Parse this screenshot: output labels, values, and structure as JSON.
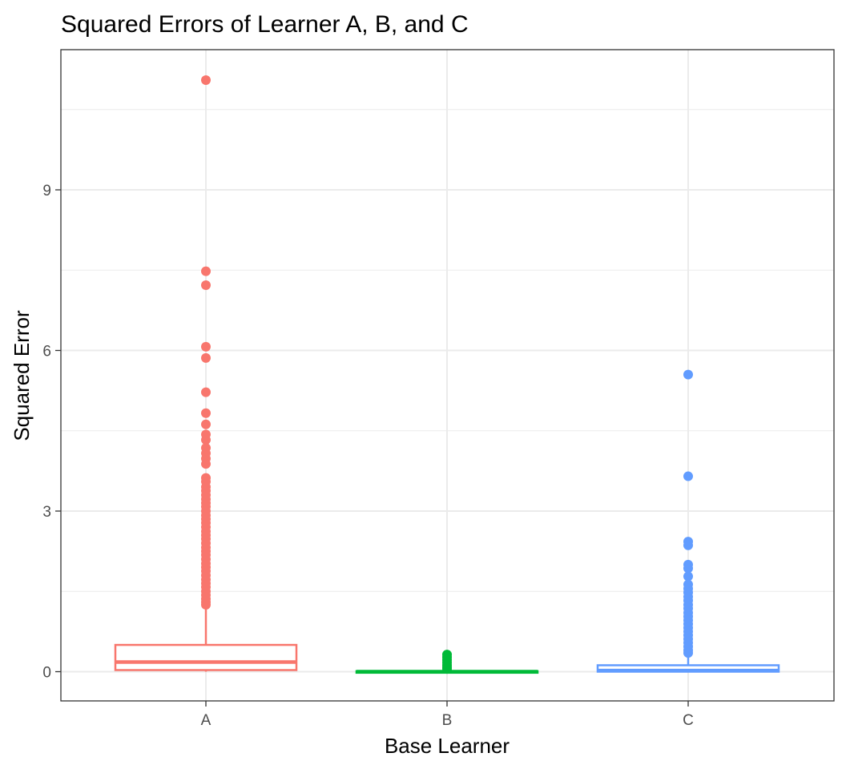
{
  "chart_data": {
    "type": "boxplot",
    "title": "Squared Errors of Learner A, B, and C",
    "xlabel": "Base Learner",
    "ylabel": "Squared Error",
    "categories": [
      "A",
      "B",
      "C"
    ],
    "ylim": [
      -0.55,
      11.6
    ],
    "yticks": [
      0,
      3,
      6,
      9
    ],
    "grid": true,
    "legend": "none",
    "series": [
      {
        "category": "A",
        "color": "#F8766D",
        "box": {
          "min": 0.0,
          "q1": 0.03,
          "median": 0.18,
          "q3": 0.5,
          "whisker_high": 1.2
        },
        "outliers": [
          11.05,
          7.48,
          7.22,
          6.07,
          5.86,
          5.22,
          4.83,
          4.62,
          4.43,
          4.33,
          4.18,
          4.08,
          3.98,
          3.88,
          3.62,
          3.55,
          3.45,
          3.38,
          3.3,
          3.22,
          3.15,
          3.08,
          3.0,
          2.92,
          2.85,
          2.78,
          2.7,
          2.62,
          2.55,
          2.48,
          2.4,
          2.32,
          2.25,
          2.18,
          2.1,
          2.02,
          1.95,
          1.88,
          1.8,
          1.72,
          1.65,
          1.58,
          1.5,
          1.43,
          1.36,
          1.3,
          1.25
        ]
      },
      {
        "category": "B",
        "color": "#00BA38",
        "box": {
          "min": 0.0,
          "q1": 0.0,
          "median": 0.0,
          "q3": 0.01,
          "whisker_high": 0.02
        },
        "outliers": [
          0.32,
          0.27,
          0.22,
          0.17,
          0.12,
          0.08,
          0.05
        ]
      },
      {
        "category": "C",
        "color": "#619CFF",
        "box": {
          "min": 0.0,
          "q1": 0.0,
          "median": 0.02,
          "q3": 0.12,
          "whisker_high": 0.3
        },
        "outliers": [
          5.55,
          3.65,
          2.43,
          2.36,
          2.0,
          1.93,
          1.78,
          1.63,
          1.55,
          1.48,
          1.4,
          1.33,
          1.25,
          1.18,
          1.1,
          1.03,
          0.96,
          0.89,
          0.82,
          0.75,
          0.68,
          0.61,
          0.54,
          0.47,
          0.4,
          0.35
        ]
      }
    ]
  }
}
